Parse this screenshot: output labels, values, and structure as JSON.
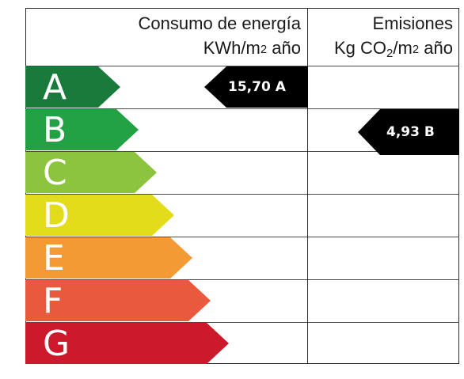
{
  "header": {
    "consumo_line1": "Consumo de energía",
    "consumo_line2_prefix": "KWh/m",
    "consumo_line2_sup": "2",
    "consumo_line2_suffix": " año",
    "emisiones_line1": "Emisiones",
    "emisiones_line2_prefix": "Kg CO",
    "emisiones_line2_sub": "2",
    "emisiones_line2_mid": "/m",
    "emisiones_line2_sup": "2",
    "emisiones_line2_suffix": " año"
  },
  "bands": [
    {
      "letter": "A",
      "color": "#1a7a3c"
    },
    {
      "letter": "B",
      "color": "#23a245"
    },
    {
      "letter": "C",
      "color": "#8cc43f"
    },
    {
      "letter": "D",
      "color": "#e3dc1b"
    },
    {
      "letter": "E",
      "color": "#f39a34"
    },
    {
      "letter": "F",
      "color": "#e9593d"
    },
    {
      "letter": "G",
      "color": "#cc1a2c"
    }
  ],
  "markers": {
    "consumo": {
      "label": "15,70 A",
      "rating": "A",
      "color": "#000000"
    },
    "emisiones": {
      "label": "4,93 B",
      "rating": "B",
      "color": "#000000"
    }
  }
}
